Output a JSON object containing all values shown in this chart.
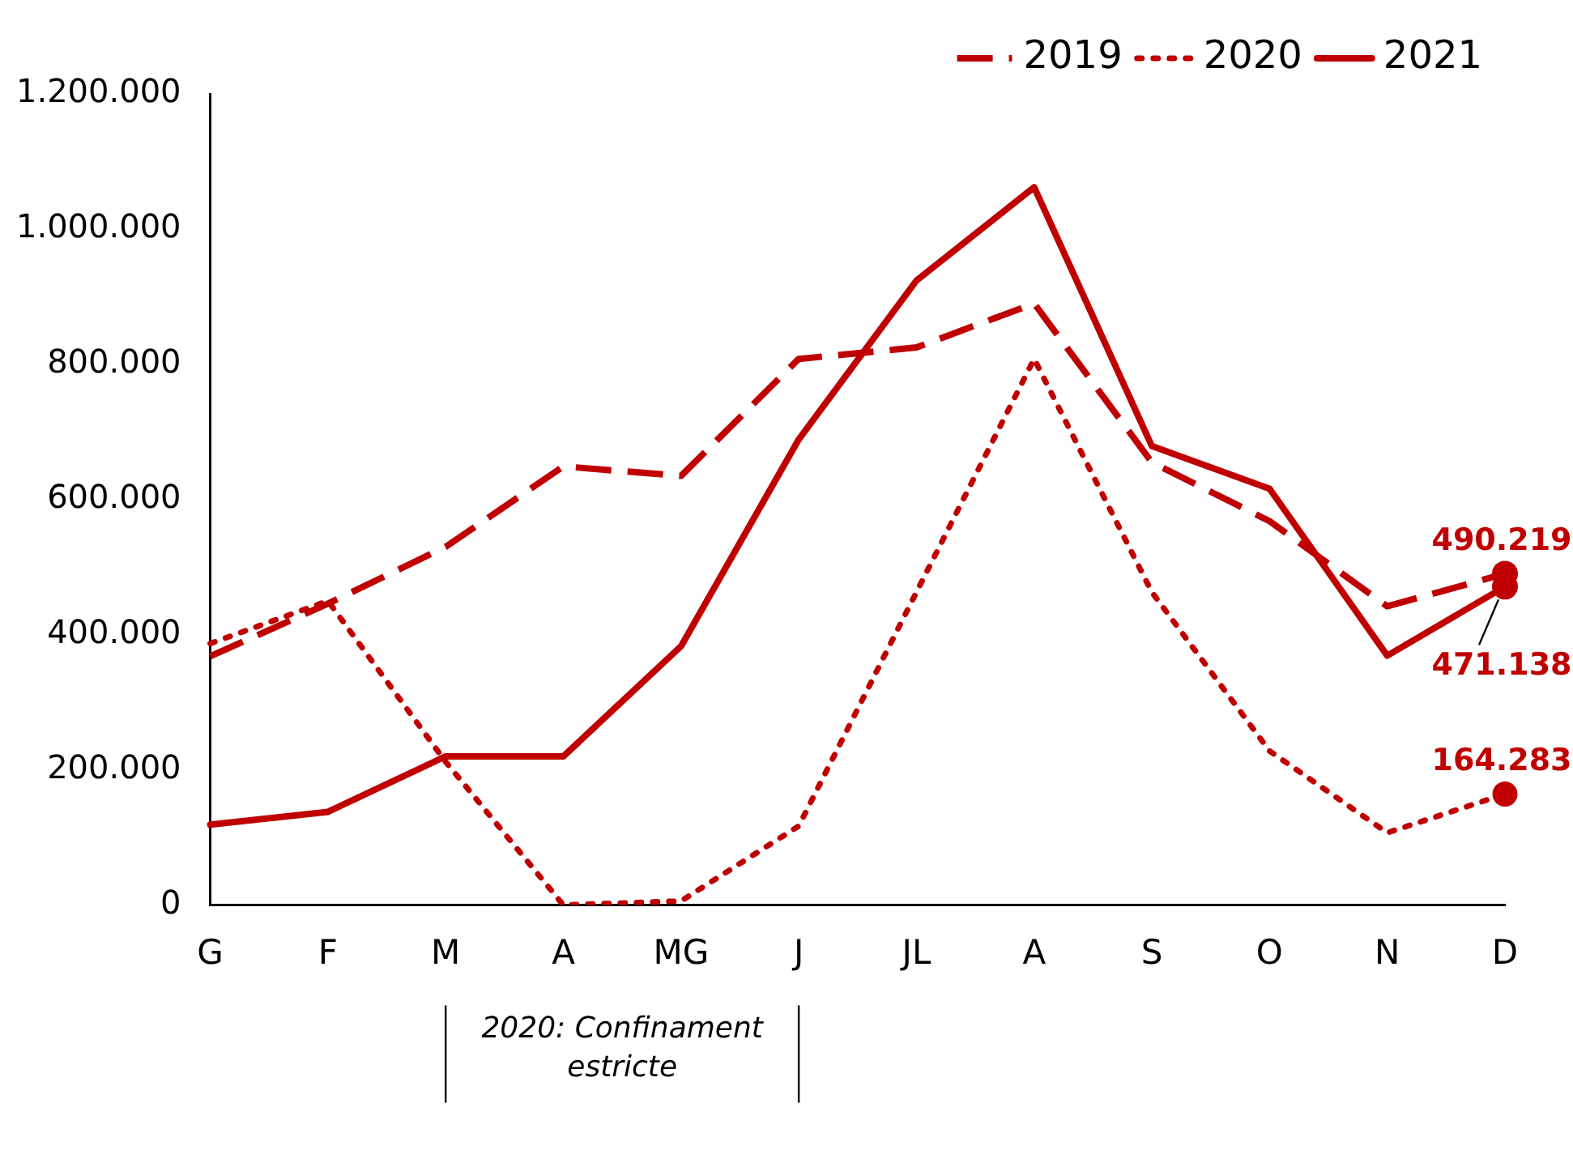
{
  "chart_data": {
    "type": "line",
    "categories": [
      "G",
      "F",
      "M",
      "A",
      "MG",
      "J",
      "JL",
      "A",
      "S",
      "O",
      "N",
      "D"
    ],
    "series": [
      {
        "name": "2019",
        "color": "#c00000",
        "line_style": "dashed",
        "values": [
          368000,
          446000,
          530000,
          649000,
          635000,
          808000,
          825000,
          890000,
          655000,
          568000,
          442000,
          490219
        ],
        "value_labels": [
          null,
          null,
          null,
          null,
          null,
          null,
          null,
          null,
          null,
          null,
          null,
          "490.219"
        ]
      },
      {
        "name": "2020",
        "color": "#c00000",
        "line_style": "dotted",
        "values": [
          387000,
          450000,
          212000,
          0,
          6000,
          117000,
          463000,
          808000,
          463000,
          228000,
          107000,
          164283
        ],
        "value_labels": [
          null,
          null,
          null,
          null,
          null,
          null,
          null,
          null,
          null,
          null,
          null,
          "164.283"
        ]
      },
      {
        "name": "2021",
        "color": "#c00000",
        "line_style": "solid",
        "values": [
          119000,
          138000,
          220000,
          220000,
          383000,
          689000,
          924000,
          1062000,
          679000,
          616000,
          369000,
          471138
        ],
        "value_labels": [
          null,
          null,
          null,
          null,
          null,
          null,
          null,
          null,
          null,
          null,
          null,
          "471.138"
        ]
      }
    ],
    "ylim": [
      0,
      1200000
    ],
    "yticks": [
      {
        "value": 0,
        "label": "0"
      },
      {
        "value": 200000,
        "label": "200.000"
      },
      {
        "value": 400000,
        "label": "400.000"
      },
      {
        "value": 600000,
        "label": "600.000"
      },
      {
        "value": 800000,
        "label": "800.000"
      },
      {
        "value": 1000000,
        "label": "1.000.000"
      },
      {
        "value": 1200000,
        "label": "1.200.000"
      }
    ],
    "grid": false,
    "legend": "top right",
    "marker": "none",
    "annotations": [
      "2020: Confinament estricte"
    ]
  }
}
